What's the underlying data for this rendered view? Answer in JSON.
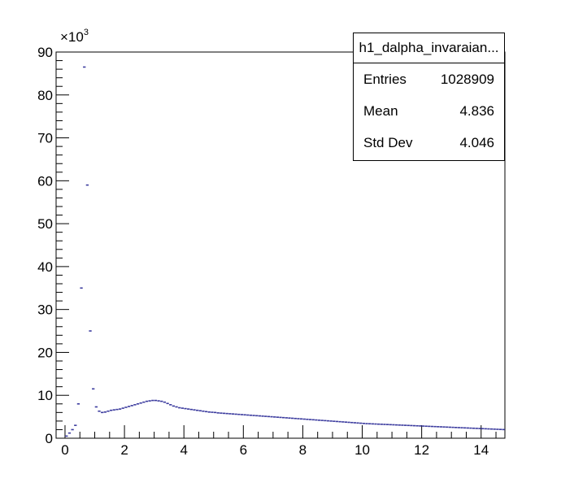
{
  "chart_data": {
    "type": "histogram",
    "title": "",
    "xlabel": "",
    "ylabel": "",
    "y_multiplier": "×10",
    "y_multiplier_exp": "3",
    "xlim": [
      -0.3,
      14.8
    ],
    "ylim": [
      0,
      90
    ],
    "x_ticks": [
      0,
      2,
      4,
      6,
      8,
      10,
      12,
      14
    ],
    "y_ticks": [
      0,
      10,
      20,
      30,
      40,
      50,
      60,
      70,
      80,
      90
    ],
    "bin_width": 0.1,
    "marker_color": "#3b3b9e",
    "x": [
      0.05,
      0.15,
      0.25,
      0.35,
      0.45,
      0.55,
      0.65,
      0.75,
      0.85,
      0.95,
      1.05,
      1.15,
      1.25,
      1.35,
      1.45,
      1.55,
      1.65,
      1.75,
      1.85,
      1.95,
      2.05,
      2.15,
      2.25,
      2.35,
      2.45,
      2.55,
      2.65,
      2.75,
      2.85,
      2.95,
      3.05,
      3.15,
      3.25,
      3.35,
      3.45,
      3.55,
      3.65,
      3.75,
      3.85,
      3.95,
      4.05,
      4.15,
      4.25,
      4.35,
      4.45,
      4.55,
      4.65,
      4.75,
      4.85,
      4.95,
      5.05,
      5.15,
      5.25,
      5.35,
      5.45,
      5.55,
      5.65,
      5.75,
      5.85,
      5.95,
      6.05,
      6.15,
      6.25,
      6.35,
      6.45,
      6.55,
      6.65,
      6.75,
      6.85,
      6.95,
      7.05,
      7.15,
      7.25,
      7.35,
      7.45,
      7.55,
      7.65,
      7.75,
      7.85,
      7.95,
      8.05,
      8.15,
      8.25,
      8.35,
      8.45,
      8.55,
      8.65,
      8.75,
      8.85,
      8.95,
      9.05,
      9.15,
      9.25,
      9.35,
      9.45,
      9.55,
      9.65,
      9.75,
      9.85,
      9.95,
      10.05,
      10.15,
      10.25,
      10.35,
      10.45,
      10.55,
      10.65,
      10.75,
      10.85,
      10.95,
      11.05,
      11.15,
      11.25,
      11.35,
      11.45,
      11.55,
      11.65,
      11.75,
      11.85,
      11.95,
      12.05,
      12.15,
      12.25,
      12.35,
      12.45,
      12.55,
      12.65,
      12.75,
      12.85,
      12.95,
      13.05,
      13.15,
      13.25,
      13.35,
      13.45,
      13.55,
      13.65,
      13.75,
      13.85,
      13.95,
      14.05,
      14.15,
      14.25,
      14.35,
      14.45,
      14.55,
      14.65,
      14.75
    ],
    "values": [
      0.5,
      1.2,
      2.0,
      3.0,
      8.0,
      35.0,
      86.5,
      59.0,
      25.0,
      11.5,
      7.3,
      6.3,
      6.0,
      6.1,
      6.3,
      6.5,
      6.6,
      6.7,
      6.8,
      7.0,
      7.2,
      7.4,
      7.6,
      7.8,
      8.0,
      8.2,
      8.4,
      8.6,
      8.7,
      8.8,
      8.8,
      8.7,
      8.6,
      8.4,
      8.1,
      7.8,
      7.5,
      7.3,
      7.1,
      7.0,
      6.9,
      6.8,
      6.7,
      6.6,
      6.5,
      6.4,
      6.3,
      6.2,
      6.1,
      6.05,
      6.0,
      5.9,
      5.85,
      5.8,
      5.75,
      5.7,
      5.65,
      5.6,
      5.55,
      5.5,
      5.45,
      5.4,
      5.35,
      5.3,
      5.25,
      5.2,
      5.15,
      5.1,
      5.05,
      5.0,
      4.95,
      4.9,
      4.85,
      4.8,
      4.75,
      4.7,
      4.65,
      4.6,
      4.55,
      4.5,
      4.45,
      4.4,
      4.35,
      4.3,
      4.25,
      4.2,
      4.15,
      4.1,
      4.05,
      4.0,
      3.95,
      3.9,
      3.85,
      3.8,
      3.75,
      3.7,
      3.65,
      3.6,
      3.55,
      3.5,
      3.45,
      3.4,
      3.37,
      3.34,
      3.31,
      3.28,
      3.25,
      3.22,
      3.19,
      3.16,
      3.13,
      3.1,
      3.07,
      3.04,
      3.01,
      2.98,
      2.95,
      2.92,
      2.89,
      2.86,
      2.83,
      2.8,
      2.77,
      2.74,
      2.71,
      2.68,
      2.65,
      2.62,
      2.59,
      2.56,
      2.53,
      2.5,
      2.47,
      2.44,
      2.41,
      2.38,
      2.35,
      2.32,
      2.29,
      2.26,
      2.23,
      2.2,
      2.17,
      2.14,
      2.11,
      2.08,
      2.05,
      2.02
    ]
  },
  "stats": {
    "title": "h1_dalpha_invaraian...",
    "rows": [
      {
        "label": "Entries",
        "value": "1028909"
      },
      {
        "label": "Mean",
        "value": "4.836"
      },
      {
        "label": "Std Dev",
        "value": "4.046"
      }
    ]
  }
}
